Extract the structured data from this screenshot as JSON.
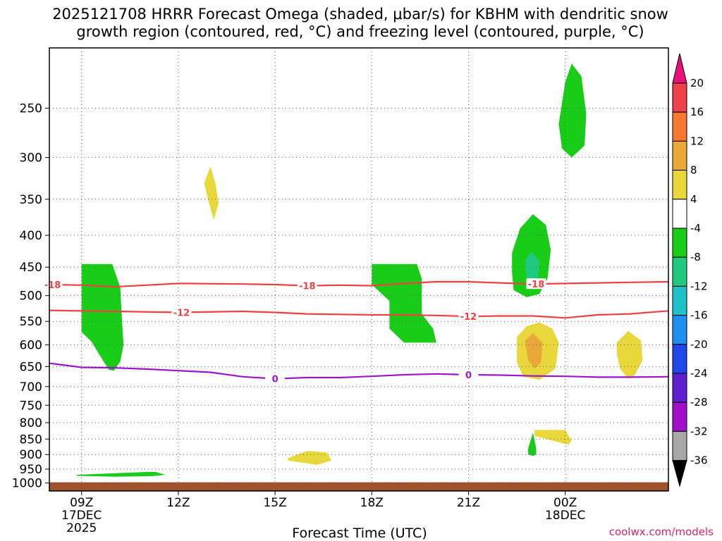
{
  "chart_data": {
    "type": "time-height cross-section",
    "title_line1": "2025121708 HRRR Forecast Omega (shaded, μbar/s) for KBHM with dendritic snow",
    "title_line2": "growth region (contoured, red, °C) and freezing level (contoured, purple, °C)",
    "xlabel": "Forecast Time (UTC)",
    "credit": "coolwx.com/models",
    "xlim": [
      8,
      27.2
    ],
    "x_ticks": [
      {
        "hour": 9,
        "label": "09Z",
        "sub1": "17DEC",
        "sub2": "2025"
      },
      {
        "hour": 12,
        "label": "12Z",
        "sub1": "",
        "sub2": ""
      },
      {
        "hour": 15,
        "label": "15Z",
        "sub1": "",
        "sub2": ""
      },
      {
        "hour": 18,
        "label": "18Z",
        "sub1": "",
        "sub2": ""
      },
      {
        "hour": 21,
        "label": "21Z",
        "sub1": "",
        "sub2": ""
      },
      {
        "hour": 24,
        "label": "00Z",
        "sub1": "18DEC",
        "sub2": ""
      }
    ],
    "y_ticks": [
      250,
      300,
      350,
      400,
      450,
      500,
      550,
      600,
      650,
      700,
      750,
      800,
      850,
      900,
      950,
      1000
    ],
    "ylim_hpa": [
      200,
      1030
    ],
    "surface_hpa": 1000,
    "colorbar": {
      "labels": [
        "20",
        "16",
        "12",
        "8",
        "4",
        "-4",
        "-8",
        "-12",
        "-16",
        "-20",
        "-24",
        "-28",
        "-32",
        "-36"
      ],
      "bands": [
        {
          "color": "#f0404a"
        },
        {
          "color": "#f47830"
        },
        {
          "color": "#eaa838"
        },
        {
          "color": "#e8d83c"
        },
        {
          "color": "#ffffff"
        },
        {
          "color": "#18cc18"
        },
        {
          "color": "#20c880"
        },
        {
          "color": "#20c0c8"
        },
        {
          "color": "#2090f0"
        },
        {
          "color": "#2048e8"
        },
        {
          "color": "#6020d0"
        },
        {
          "color": "#a010c8"
        },
        {
          "color": "#a8a8a8"
        }
      ],
      "top_color": "#e8107a",
      "bottom_color": "#000000"
    },
    "contours": [
      {
        "name": "dgz-minus18",
        "label": "-18",
        "color": "#f04040",
        "points": [
          [
            8,
            480
          ],
          [
            9,
            481
          ],
          [
            10,
            484
          ],
          [
            11,
            481
          ],
          [
            12,
            478
          ],
          [
            14,
            479
          ],
          [
            15,
            480
          ],
          [
            16,
            482
          ],
          [
            17,
            481
          ],
          [
            18,
            482
          ],
          [
            19,
            478
          ],
          [
            20,
            475
          ],
          [
            21,
            475
          ],
          [
            22,
            477
          ],
          [
            23,
            479
          ],
          [
            24,
            478
          ],
          [
            25,
            477
          ],
          [
            26,
            476
          ],
          [
            27.2,
            475
          ]
        ],
        "label_at": [
          [
            8.1,
            480
          ],
          [
            16,
            482
          ],
          [
            23.1,
            479
          ]
        ]
      },
      {
        "name": "dgz-minus12",
        "label": "-12",
        "color": "#f04040",
        "points": [
          [
            8,
            528
          ],
          [
            10,
            530
          ],
          [
            12,
            532
          ],
          [
            14,
            530
          ],
          [
            15,
            532
          ],
          [
            16,
            535
          ],
          [
            17,
            536
          ],
          [
            18,
            537
          ],
          [
            19,
            537
          ],
          [
            20,
            538
          ],
          [
            21,
            540
          ],
          [
            22,
            539
          ],
          [
            23,
            539
          ],
          [
            24,
            543
          ],
          [
            25,
            537
          ],
          [
            26,
            535
          ],
          [
            27.2,
            529
          ]
        ],
        "label_at": [
          [
            12.1,
            532
          ],
          [
            21,
            540
          ]
        ]
      },
      {
        "name": "freezing-level",
        "label": "0",
        "color": "#9b18c8",
        "points": [
          [
            8,
            642
          ],
          [
            9,
            652
          ],
          [
            10,
            653
          ],
          [
            11,
            656
          ],
          [
            12,
            660
          ],
          [
            13,
            664
          ],
          [
            14,
            675
          ],
          [
            15,
            680
          ],
          [
            16,
            677
          ],
          [
            17,
            677
          ],
          [
            18,
            674
          ],
          [
            19,
            670
          ],
          [
            20,
            668
          ],
          [
            21,
            670
          ],
          [
            22,
            671
          ],
          [
            23,
            673
          ],
          [
            24,
            674
          ],
          [
            25,
            676
          ],
          [
            26,
            676
          ],
          [
            27.2,
            675
          ]
        ],
        "label_at": [
          [
            15,
            680
          ],
          [
            21,
            670
          ]
        ]
      }
    ],
    "omega_regions": [
      {
        "name": "green-0930-1000",
        "value": -6,
        "points": [
          [
            9,
            445
          ],
          [
            9.95,
            445
          ],
          [
            10.2,
            485
          ],
          [
            10.25,
            545
          ],
          [
            10.3,
            600
          ],
          [
            10.2,
            638
          ],
          [
            10.0,
            660
          ],
          [
            9.85,
            658
          ],
          [
            9.6,
            628
          ],
          [
            9.3,
            592
          ],
          [
            9,
            572
          ]
        ]
      },
      {
        "name": "yellow-1300-350",
        "value": 6,
        "points": [
          [
            12.8,
            330
          ],
          [
            13,
            310
          ],
          [
            13.15,
            330
          ],
          [
            13.25,
            355
          ],
          [
            13.1,
            378
          ],
          [
            12.95,
            355
          ]
        ]
      },
      {
        "name": "green-1800-1930",
        "value": -6,
        "points": [
          [
            18,
            445
          ],
          [
            19.4,
            445
          ],
          [
            19.55,
            470
          ],
          [
            19.55,
            535
          ],
          [
            19.9,
            565
          ],
          [
            20.0,
            595
          ],
          [
            19,
            595
          ],
          [
            18.55,
            565
          ],
          [
            18.55,
            510
          ],
          [
            18,
            480
          ]
        ]
      },
      {
        "name": "green-2230-420",
        "value": -6,
        "points": [
          [
            22.35,
            427
          ],
          [
            22.6,
            390
          ],
          [
            23,
            370
          ],
          [
            23.4,
            385
          ],
          [
            23.55,
            422
          ],
          [
            23.45,
            470
          ],
          [
            23.2,
            497
          ],
          [
            22.8,
            503
          ],
          [
            22.4,
            490
          ],
          [
            22.35,
            460
          ]
        ]
      },
      {
        "name": "teal-2300-450",
        "value": -10,
        "points": [
          [
            22.75,
            440
          ],
          [
            22.95,
            425
          ],
          [
            23.2,
            440
          ],
          [
            23.15,
            475
          ],
          [
            22.95,
            490
          ],
          [
            22.8,
            470
          ]
        ]
      },
      {
        "name": "yellow-2300-600",
        "value": 6,
        "points": [
          [
            22.5,
            583
          ],
          [
            22.8,
            560
          ],
          [
            23.2,
            552
          ],
          [
            23.6,
            565
          ],
          [
            23.8,
            595
          ],
          [
            23.7,
            655
          ],
          [
            23.2,
            683
          ],
          [
            22.7,
            675
          ],
          [
            22.5,
            640
          ]
        ]
      },
      {
        "name": "orange-2300-600",
        "value": 10,
        "points": [
          [
            22.75,
            590
          ],
          [
            23,
            575
          ],
          [
            23.3,
            595
          ],
          [
            23.25,
            640
          ],
          [
            23.05,
            655
          ],
          [
            22.85,
            635
          ]
        ]
      },
      {
        "name": "green-0000-250",
        "value": -6,
        "points": [
          [
            24,
            227
          ],
          [
            24.2,
            212
          ],
          [
            24.5,
            222
          ],
          [
            24.65,
            255
          ],
          [
            24.6,
            287
          ],
          [
            24.2,
            300
          ],
          [
            23.9,
            290
          ],
          [
            23.8,
            265
          ]
        ]
      },
      {
        "name": "yellow-0100-600",
        "value": 6,
        "points": [
          [
            25.6,
            595
          ],
          [
            25.95,
            570
          ],
          [
            26.35,
            590
          ],
          [
            26.4,
            635
          ],
          [
            26.15,
            672
          ],
          [
            25.95,
            680
          ],
          [
            25.7,
            655
          ],
          [
            25.6,
            620
          ]
        ]
      },
      {
        "name": "green-2300-880",
        "value": -6,
        "points": [
          [
            22.85,
            880
          ],
          [
            23,
            830
          ],
          [
            23.1,
            880
          ],
          [
            23.1,
            900
          ],
          [
            23,
            905
          ],
          [
            22.85,
            900
          ]
        ]
      },
      {
        "name": "yellow-0000-870",
        "value": 6,
        "points": [
          [
            23.05,
            822
          ],
          [
            24,
            822
          ],
          [
            24.2,
            855
          ],
          [
            24.1,
            868
          ],
          [
            23.8,
            860
          ],
          [
            23.05,
            840
          ]
        ]
      },
      {
        "name": "yellow-1600-910",
        "value": 6,
        "points": [
          [
            15.4,
            912
          ],
          [
            16,
            888
          ],
          [
            16.6,
            893
          ],
          [
            16.75,
            920
          ],
          [
            16.3,
            935
          ],
          [
            15.7,
            925
          ],
          [
            15.4,
            920
          ]
        ]
      },
      {
        "name": "green-1000-970",
        "value": -6,
        "points": [
          [
            8.85,
            970
          ],
          [
            11,
            960
          ],
          [
            11.3,
            960
          ],
          [
            11.6,
            970
          ],
          [
            11.2,
            975
          ],
          [
            10,
            977
          ],
          [
            8.85,
            974
          ]
        ]
      }
    ]
  }
}
